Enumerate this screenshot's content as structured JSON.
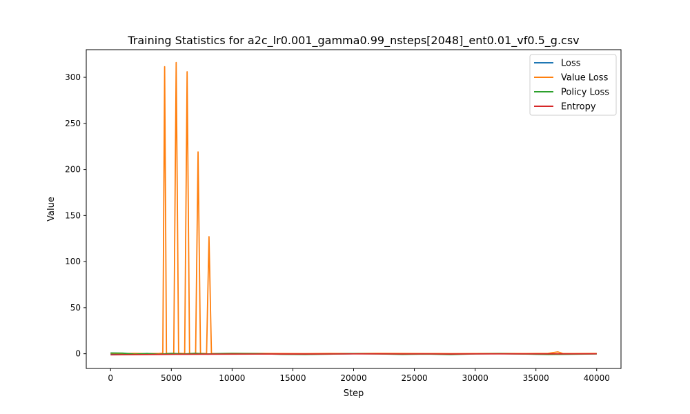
{
  "chart_data": {
    "type": "line",
    "title": "Training Statistics for a2c_lr0.001_gamma0.99_nsteps[2048]_ent0.01_vf0.5_g.csv",
    "xlabel": "Step",
    "ylabel": "Value",
    "xlim": [
      -2000,
      42000
    ],
    "ylim": [
      -16,
      330
    ],
    "xticks": [
      0,
      5000,
      10000,
      15000,
      20000,
      25000,
      30000,
      35000,
      40000
    ],
    "yticks": [
      0,
      50,
      100,
      150,
      200,
      250,
      300
    ],
    "grid": false,
    "legend_position": "top-right",
    "series": [
      {
        "name": "Loss",
        "color": "#1f77b4",
        "x": [
          0,
          1000,
          2000,
          3000,
          4000,
          5000,
          6000,
          7000,
          8000,
          9000,
          10000,
          12000,
          14000,
          16000,
          18000,
          20000,
          22000,
          24000,
          26000,
          28000,
          30000,
          32000,
          34000,
          36000,
          38000,
          40000
        ],
        "y": [
          -0.3,
          0.1,
          -0.2,
          0.0,
          -0.4,
          0.1,
          -0.2,
          0.0,
          -0.3,
          0.1,
          0.2,
          0.0,
          -0.3,
          -0.5,
          -0.2,
          0.0,
          -0.1,
          -0.4,
          -0.2,
          -0.5,
          -0.1,
          0.0,
          -0.2,
          -0.6,
          -0.3,
          -0.1
        ]
      },
      {
        "name": "Value Loss",
        "color": "#ff7f0e",
        "x": [
          0,
          1000,
          2000,
          3000,
          4000,
          4300,
          4450,
          4600,
          5200,
          5400,
          5600,
          6100,
          6300,
          6500,
          7000,
          7200,
          7400,
          7900,
          8100,
          8300,
          9000,
          10000,
          12000,
          14000,
          16000,
          18000,
          20000,
          22000,
          24000,
          26000,
          28000,
          30000,
          32000,
          34000,
          36000,
          36800,
          37200,
          38000,
          40000
        ],
        "y": [
          0.5,
          0.2,
          0.4,
          0.1,
          0.3,
          0.5,
          311.5,
          0.4,
          0.3,
          316,
          0.5,
          0.2,
          306,
          0.4,
          0.3,
          219,
          0.4,
          0.2,
          127,
          0.3,
          0.2,
          0.4,
          0.3,
          0.2,
          0.1,
          0.3,
          0.2,
          0.4,
          0.3,
          0.2,
          0.1,
          0.2,
          0.3,
          0.2,
          0.4,
          2.0,
          0.3,
          0.2,
          0.3
        ]
      },
      {
        "name": "Policy Loss",
        "color": "#2ca02c",
        "x": [
          0,
          1000,
          2000,
          3000,
          4000,
          5000,
          6000,
          7000,
          8000,
          9000,
          10000,
          12000,
          14000,
          16000,
          18000,
          20000,
          22000,
          24000,
          26000,
          28000,
          30000,
          32000,
          34000,
          36000,
          38000,
          40000
        ],
        "y": [
          0.8,
          0.6,
          -0.5,
          0.3,
          -0.6,
          0.4,
          -0.3,
          0.5,
          -0.4,
          0.2,
          0.3,
          0.1,
          -0.6,
          -0.8,
          -0.4,
          0.1,
          -0.2,
          -0.7,
          -0.3,
          -0.9,
          -0.2,
          0.1,
          -0.3,
          -0.8,
          -0.5,
          -0.2
        ]
      },
      {
        "name": "Entropy",
        "color": "#d62728",
        "x": [
          0,
          2000,
          4000,
          6000,
          8000,
          10000,
          12000,
          14000,
          16000,
          18000,
          20000,
          22000,
          24000,
          26000,
          28000,
          30000,
          32000,
          34000,
          36000,
          38000,
          40000
        ],
        "y": [
          -1.2,
          -1.0,
          -0.8,
          -0.6,
          -0.5,
          -0.4,
          -0.35,
          -0.3,
          -0.3,
          -0.25,
          -0.2,
          -0.2,
          -0.25,
          -0.2,
          -0.3,
          -0.2,
          -0.2,
          -0.15,
          -0.2,
          -0.15,
          -0.1
        ]
      }
    ]
  }
}
